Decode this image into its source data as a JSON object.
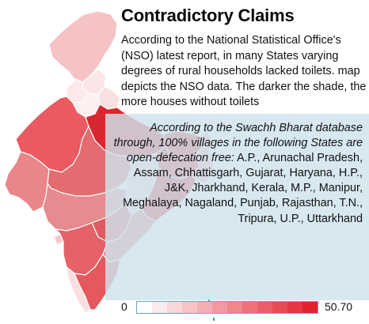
{
  "title": "Contradictory Claims",
  "nso_note": "According to the National Statistical Office's (NSO) latest report, in many States varying degrees of rural households lacked toilets. map depicts the NSO data. The darker the shade, the more houses without toilets",
  "sb_note": {
    "italic": "According to the Swachh Bharat database through, 100% villages in the following States are open-defecation free:",
    "states": "A.P., Arunachal Pradesh, Assam, Chhattisgarh, Gujarat, Haryana, H.P., J&K, Jharkhand, Kerala, M.P., Manipur, Meghalaya, Nagaland, Punjab, Rajasthan, T.N., Tripura, U.P., Uttarkhand"
  },
  "legend": {
    "min": "0",
    "max": "50.70",
    "steps": 12
  },
  "colors": {
    "scale_low": "#ffffff",
    "scale_high": "#e0242b",
    "panel_bg": "#cee3ee",
    "legend_border": "#6aa3c6"
  }
}
